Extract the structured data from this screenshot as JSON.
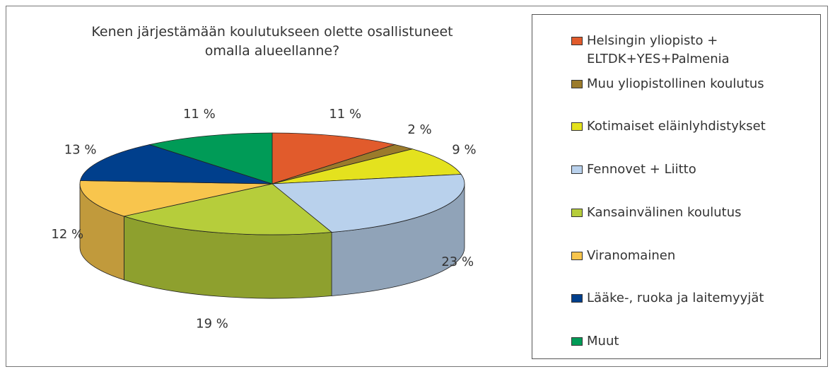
{
  "chart_data": {
    "type": "pie3d",
    "title": "Kenen järjestämään koulutukseen olette osallistuneet\nomalla alueellanne?",
    "categories": [
      "Helsingin yliopisto +\nELTDK+YES+Palmenia",
      "Muu yliopistollinen koulutus",
      "Kotimaiset eläinlyhdistykset",
      "Fennovet + Liitto",
      "Kansainvälinen koulutus",
      "Viranomainen",
      "Lääke-, ruoka ja laitemyyjät",
      "Muut"
    ],
    "values": [
      11,
      2,
      9,
      23,
      19,
      12,
      13,
      11
    ],
    "value_labels": [
      "11 %",
      "2 %",
      "9 %",
      "23 %",
      "19 %",
      "12 %",
      "13 %",
      "11 %"
    ],
    "colors": [
      "#e15b2c",
      "#9b7b2b",
      "#e4e21e",
      "#b9d1ec",
      "#b6cd3b",
      "#f8c54d",
      "#003f8c",
      "#009b57"
    ],
    "legend": "right"
  }
}
